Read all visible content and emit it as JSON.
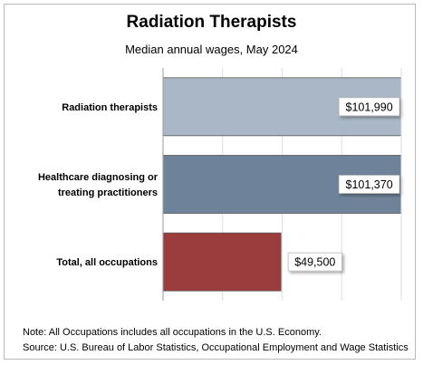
{
  "chart_data": {
    "type": "bar",
    "orientation": "horizontal",
    "title": "Radiation Therapists",
    "subtitle": "Median annual wages, May 2024",
    "categories": [
      [
        "Radiation therapists"
      ],
      [
        "Healthcare diagnosing or",
        "treating practitioners"
      ],
      [
        "Total, all occupations"
      ]
    ],
    "values": [
      101990,
      101370,
      49500
    ],
    "value_labels": [
      "$101,990",
      "$101,370",
      "$49,500"
    ],
    "colors": [
      "#a9b7c6",
      "#6e8299",
      "#9c3d3d"
    ],
    "xlim": [
      0,
      100000
    ],
    "grid": true
  },
  "notes": {
    "note": "Note: All Occupations includes all occupations in the U.S. Economy.",
    "source": "Source: U.S. Bureau of Labor Statistics, Occupational Employment and Wage Statistics"
  }
}
